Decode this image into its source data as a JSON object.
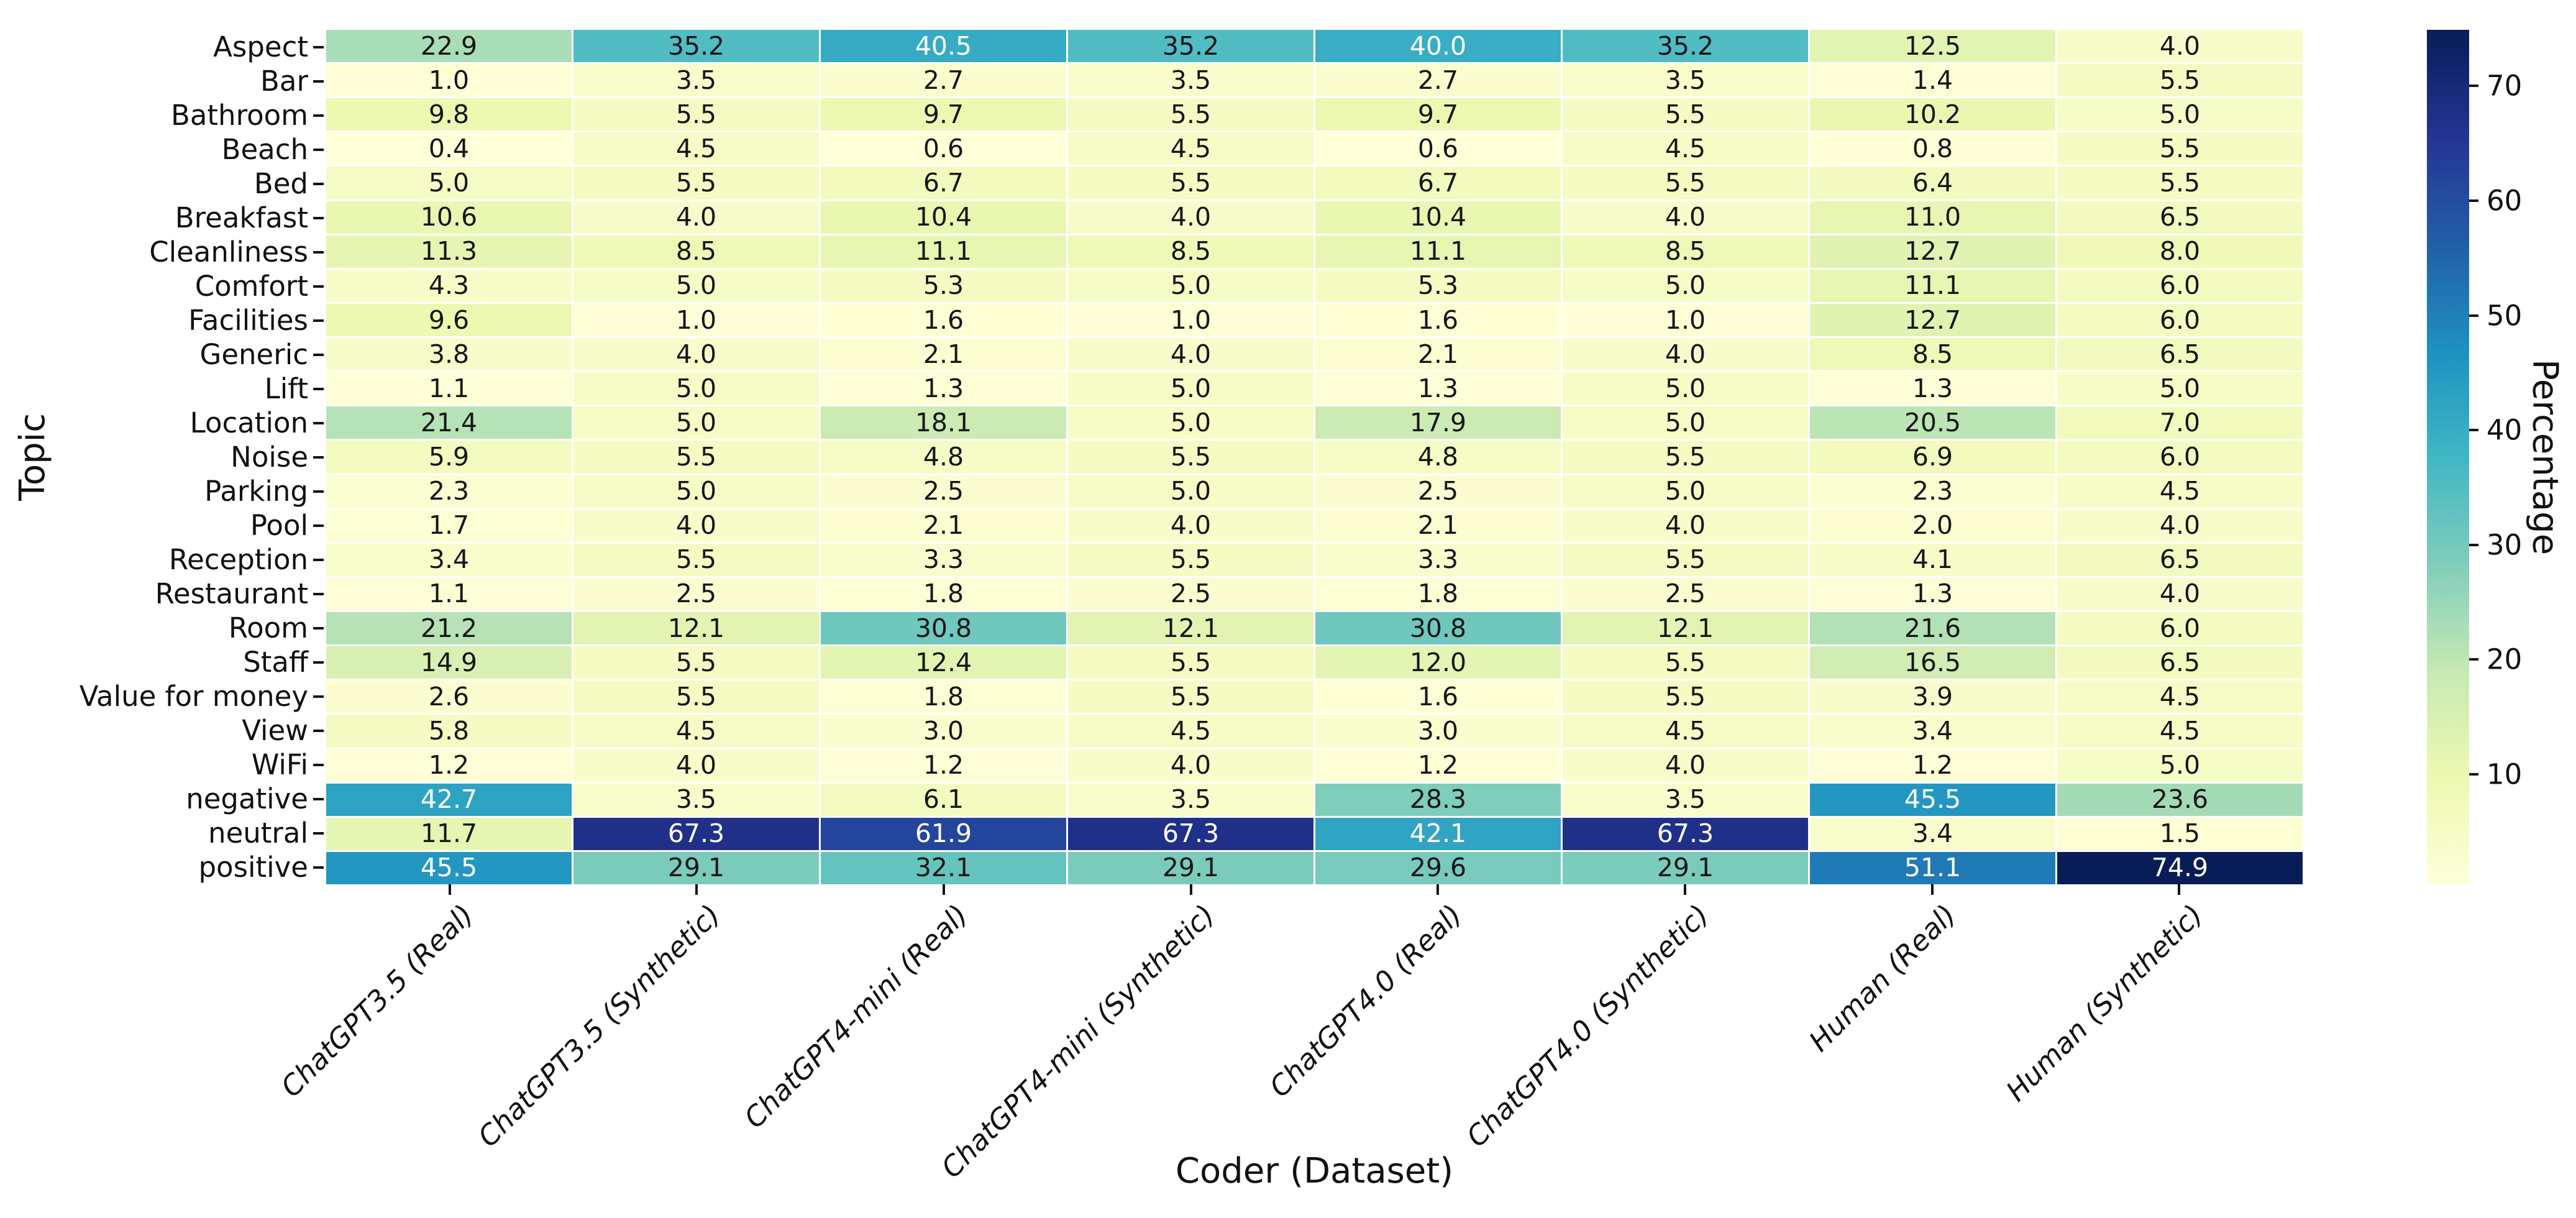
{
  "chart_data": {
    "type": "heatmap",
    "xlabel": "Coder (Dataset)",
    "ylabel": "Topic",
    "colorbar_label": "Percentage",
    "colorbar_ticks": [
      10,
      20,
      30,
      40,
      50,
      60,
      70
    ],
    "vmin": 0.4,
    "vmax": 74.9,
    "colormap_name": "YlGnBu",
    "colormap_stops": [
      "#ffffd9",
      "#edf8b1",
      "#c7e9b4",
      "#7fcdbb",
      "#41b6c4",
      "#1d91c0",
      "#225ea8",
      "#253494",
      "#081d58"
    ],
    "gridline_color": "#ffffff",
    "background_color": "#ffffff",
    "annot_text_dark": "#161616",
    "annot_text_light": "#ffffff",
    "axis_text_color": "#111111",
    "value_decimals": 1,
    "categories_x": [
      "ChatGPT3.5 (Real)",
      "ChatGPT3.5 (Synthetic)",
      "ChatGPT4-mini (Real)",
      "ChatGPT4-mini (Synthetic)",
      "ChatGPT4.0 (Real)",
      "ChatGPT4.0 (Synthetic)",
      "Human (Real)",
      "Human (Synthetic)"
    ],
    "categories_y": [
      "Aspect",
      "Bar",
      "Bathroom",
      "Beach",
      "Bed",
      "Breakfast",
      "Cleanliness",
      "Comfort",
      "Facilities",
      "Generic",
      "Lift",
      "Location",
      "Noise",
      "Parking",
      "Pool",
      "Reception",
      "Restaurant",
      "Room",
      "Staff",
      "Value for money",
      "View",
      "WiFi",
      "negative",
      "neutral",
      "positive"
    ],
    "values": [
      [
        22.9,
        35.2,
        40.5,
        35.2,
        40.0,
        35.2,
        12.5,
        4.0
      ],
      [
        1.0,
        3.5,
        2.7,
        3.5,
        2.7,
        3.5,
        1.4,
        5.5
      ],
      [
        9.8,
        5.5,
        9.7,
        5.5,
        9.7,
        5.5,
        10.2,
        5.0
      ],
      [
        0.4,
        4.5,
        0.6,
        4.5,
        0.6,
        4.5,
        0.8,
        5.5
      ],
      [
        5.0,
        5.5,
        6.7,
        5.5,
        6.7,
        5.5,
        6.4,
        5.5
      ],
      [
        10.6,
        4.0,
        10.4,
        4.0,
        10.4,
        4.0,
        11.0,
        6.5
      ],
      [
        11.3,
        8.5,
        11.1,
        8.5,
        11.1,
        8.5,
        12.7,
        8.0
      ],
      [
        4.3,
        5.0,
        5.3,
        5.0,
        5.3,
        5.0,
        11.1,
        6.0
      ],
      [
        9.6,
        1.0,
        1.6,
        1.0,
        1.6,
        1.0,
        12.7,
        6.0
      ],
      [
        3.8,
        4.0,
        2.1,
        4.0,
        2.1,
        4.0,
        8.5,
        6.5
      ],
      [
        1.1,
        5.0,
        1.3,
        5.0,
        1.3,
        5.0,
        1.3,
        5.0
      ],
      [
        21.4,
        5.0,
        18.1,
        5.0,
        17.9,
        5.0,
        20.5,
        7.0
      ],
      [
        5.9,
        5.5,
        4.8,
        5.5,
        4.8,
        5.5,
        6.9,
        6.0
      ],
      [
        2.3,
        5.0,
        2.5,
        5.0,
        2.5,
        5.0,
        2.3,
        4.5
      ],
      [
        1.7,
        4.0,
        2.1,
        4.0,
        2.1,
        4.0,
        2.0,
        4.0
      ],
      [
        3.4,
        5.5,
        3.3,
        5.5,
        3.3,
        5.5,
        4.1,
        6.5
      ],
      [
        1.1,
        2.5,
        1.8,
        2.5,
        1.8,
        2.5,
        1.3,
        4.0
      ],
      [
        21.2,
        12.1,
        30.8,
        12.1,
        30.8,
        12.1,
        21.6,
        6.0
      ],
      [
        14.9,
        5.5,
        12.4,
        5.5,
        12.0,
        5.5,
        16.5,
        6.5
      ],
      [
        2.6,
        5.5,
        1.8,
        5.5,
        1.6,
        5.5,
        3.9,
        4.5
      ],
      [
        5.8,
        4.5,
        3.0,
        4.5,
        3.0,
        4.5,
        3.4,
        4.5
      ],
      [
        1.2,
        4.0,
        1.2,
        4.0,
        1.2,
        4.0,
        1.2,
        5.0
      ],
      [
        42.7,
        3.5,
        6.1,
        3.5,
        28.3,
        3.5,
        45.5,
        23.6
      ],
      [
        11.7,
        67.3,
        61.9,
        67.3,
        42.1,
        67.3,
        3.4,
        1.5
      ],
      [
        45.5,
        29.1,
        32.1,
        29.1,
        29.6,
        29.1,
        51.1,
        74.9
      ]
    ]
  }
}
